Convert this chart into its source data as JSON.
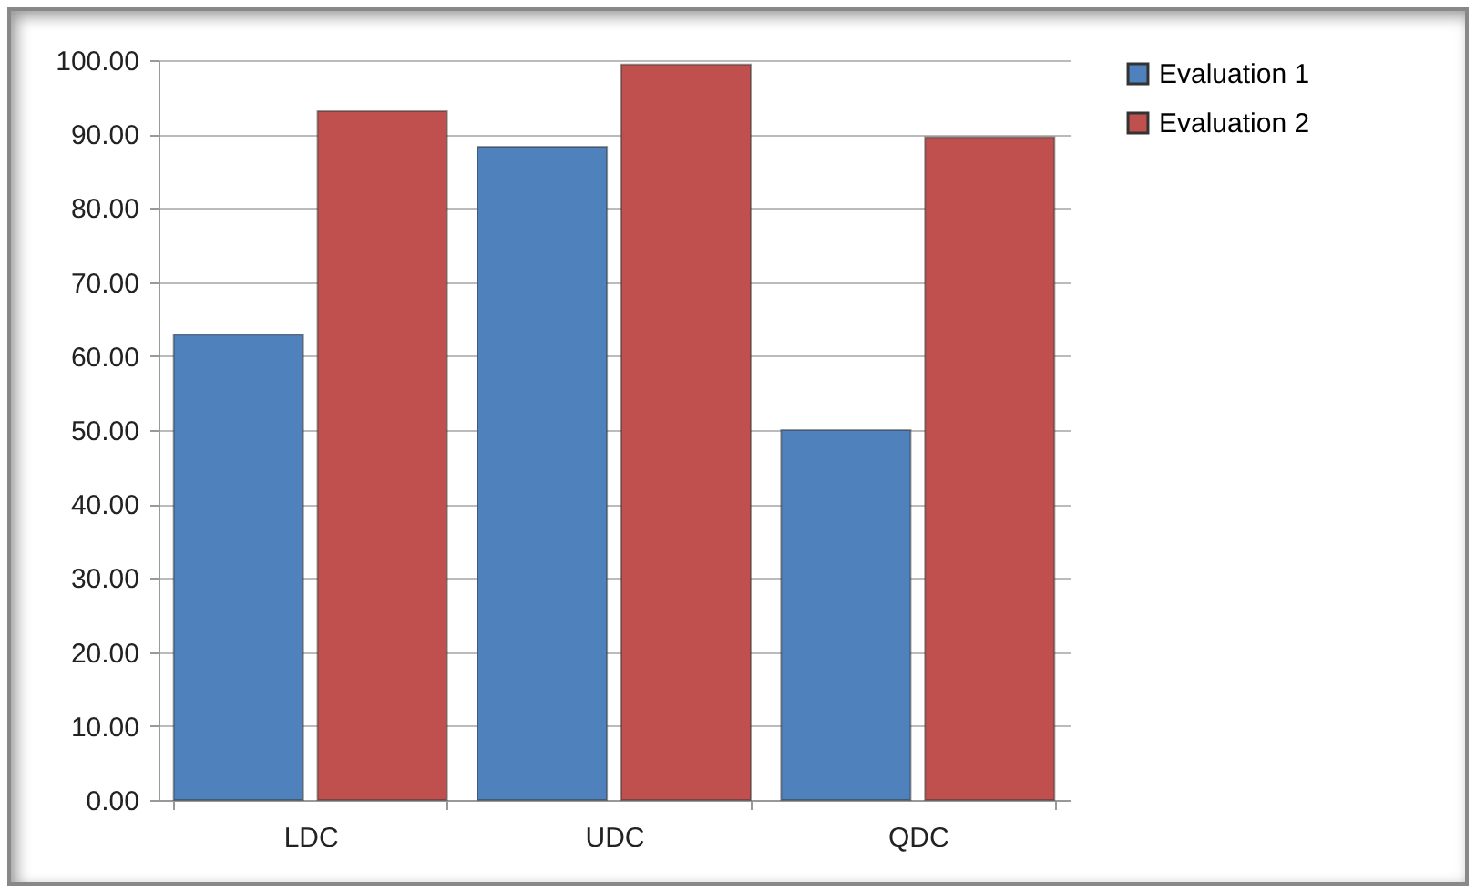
{
  "chart_data": {
    "type": "bar",
    "categories": [
      "LDC",
      "UDC",
      "QDC"
    ],
    "series": [
      {
        "name": "Evaluation 1",
        "color": "#4f81bd",
        "values": [
          62.9,
          88.3,
          50.0
        ]
      },
      {
        "name": "Evaluation 2",
        "color": "#c0504d",
        "values": [
          93.1,
          99.4,
          89.6
        ]
      }
    ],
    "ylim": [
      0,
      100
    ],
    "yticks": [
      {
        "value": 0,
        "label": "0.00"
      },
      {
        "value": 10,
        "label": "10.00"
      },
      {
        "value": 20,
        "label": "20.00"
      },
      {
        "value": 30,
        "label": "30.00"
      },
      {
        "value": 40,
        "label": "40.00"
      },
      {
        "value": 50,
        "label": "50.00"
      },
      {
        "value": 60,
        "label": "60.00"
      },
      {
        "value": 70,
        "label": "70.00"
      },
      {
        "value": 80,
        "label": "80.00"
      },
      {
        "value": 90,
        "label": "90.00"
      },
      {
        "value": 100,
        "label": "100.00"
      }
    ],
    "grid": "y",
    "legend": "right"
  }
}
